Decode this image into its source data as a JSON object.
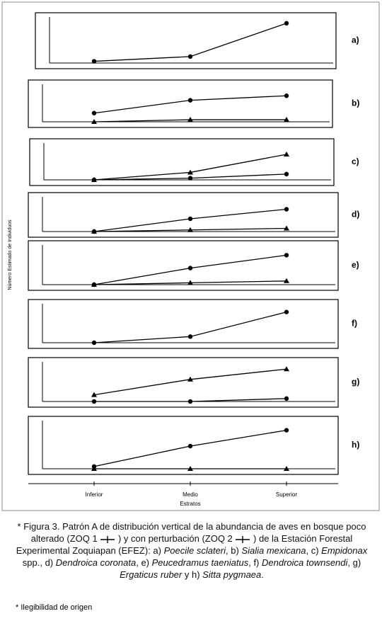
{
  "chart_data": [
    {
      "type": "line",
      "panel_label": "a)",
      "ylim": [
        0,
        100
      ],
      "series": [
        {
          "name": "ZOQ 1",
          "color": "#000000",
          "values": [
            4,
            15,
            92
          ]
        }
      ]
    },
    {
      "type": "line",
      "panel_label": "b)",
      "ylim": [
        0,
        100
      ],
      "series": [
        {
          "name": "ZOQ 1",
          "color": "#000000",
          "values": [
            25,
            62,
            75
          ]
        },
        {
          "name": "ZOQ 2",
          "color": "#000000",
          "values": [
            0,
            6,
            6
          ]
        }
      ]
    },
    {
      "type": "line",
      "panel_label": "c)",
      "ylim": [
        0,
        100
      ],
      "series": [
        {
          "name": "ZOQ 1",
          "color": "#000000",
          "values": [
            0,
            5,
            17
          ]
        },
        {
          "name": "ZOQ 2",
          "color": "#000000",
          "values": [
            0,
            22,
            75
          ]
        }
      ]
    },
    {
      "type": "line",
      "panel_label": "d)",
      "ylim": [
        0,
        100
      ],
      "series": [
        {
          "name": "ZOQ 1",
          "color": "#000000",
          "values": [
            0,
            40,
            70
          ]
        },
        {
          "name": "ZOQ 2",
          "color": "#000000",
          "values": [
            0,
            5,
            10
          ]
        }
      ]
    },
    {
      "type": "line",
      "panel_label": "e)",
      "ylim": [
        0,
        100
      ],
      "series": [
        {
          "name": "ZOQ 1",
          "color": "#000000",
          "values": [
            0,
            45,
            80
          ]
        },
        {
          "name": "ZOQ 2",
          "color": "#000000",
          "values": [
            0,
            5,
            10
          ]
        }
      ]
    },
    {
      "type": "line",
      "panel_label": "f)",
      "ylim": [
        0,
        100
      ],
      "series": [
        {
          "name": "ZOQ 1",
          "color": "#000000",
          "values": [
            0,
            17,
            85
          ]
        }
      ]
    },
    {
      "type": "line",
      "panel_label": "g)",
      "ylim": [
        0,
        100
      ],
      "series": [
        {
          "name": "ZOQ 1",
          "color": "#000000",
          "values": [
            0,
            0,
            8
          ]
        },
        {
          "name": "ZOQ 2",
          "color": "#000000",
          "values": [
            18,
            60,
            88
          ]
        }
      ]
    },
    {
      "type": "line",
      "panel_label": "h)",
      "ylim": [
        0,
        100
      ],
      "categories": [
        "Inferior",
        "Medio",
        "Superior"
      ],
      "x_label": "Estratos",
      "series": [
        {
          "name": "ZOQ 1",
          "color": "#000000",
          "values": [
            5,
            50,
            85
          ]
        },
        {
          "name": "ZOQ 2",
          "color": "#000000",
          "values": [
            0,
            0,
            0
          ]
        }
      ]
    }
  ],
  "y_label": "Número Estimado de Individuos",
  "caption": [
    {
      "text": "* Figura 3. Patrón A de distribución vertical de la abundancia de aves en bosque poco alterado (",
      "italic": false
    },
    {
      "text": " ) y con perturbación (",
      "italic": false
    },
    {
      "text": " ) de la Estación Forestal Experimental Zoquiapan (EFEZ): a) ",
      "italic": false
    },
    {
      "text": "Poecile sclateri",
      "italic": true
    },
    {
      "text": ", b) ",
      "italic": false
    },
    {
      "text": "Sialia mexicana",
      "italic": true
    },
    {
      "text": ", c) ",
      "italic": false
    },
    {
      "text": "Empidonax",
      "italic": true
    },
    {
      "text": " spp., d) ",
      "italic": false
    },
    {
      "text": "Dendroica coronata",
      "italic": true
    },
    {
      "text": ", e) ",
      "italic": false
    },
    {
      "text": "Peucedramus taeniatus",
      "italic": true
    },
    {
      "text": ", f) ",
      "italic": false
    },
    {
      "text": "Dendroica townsendi",
      "italic": true
    },
    {
      "text": ", g) ",
      "italic": false
    },
    {
      "text": "Ergaticus ruber",
      "italic": true
    },
    {
      "text": " y h) ",
      "italic": false
    },
    {
      "text": "Sitta pygmaea",
      "italic": true
    },
    {
      "text": ".",
      "italic": false
    }
  ],
  "footnote": "* Ilegibilidad de origen"
}
